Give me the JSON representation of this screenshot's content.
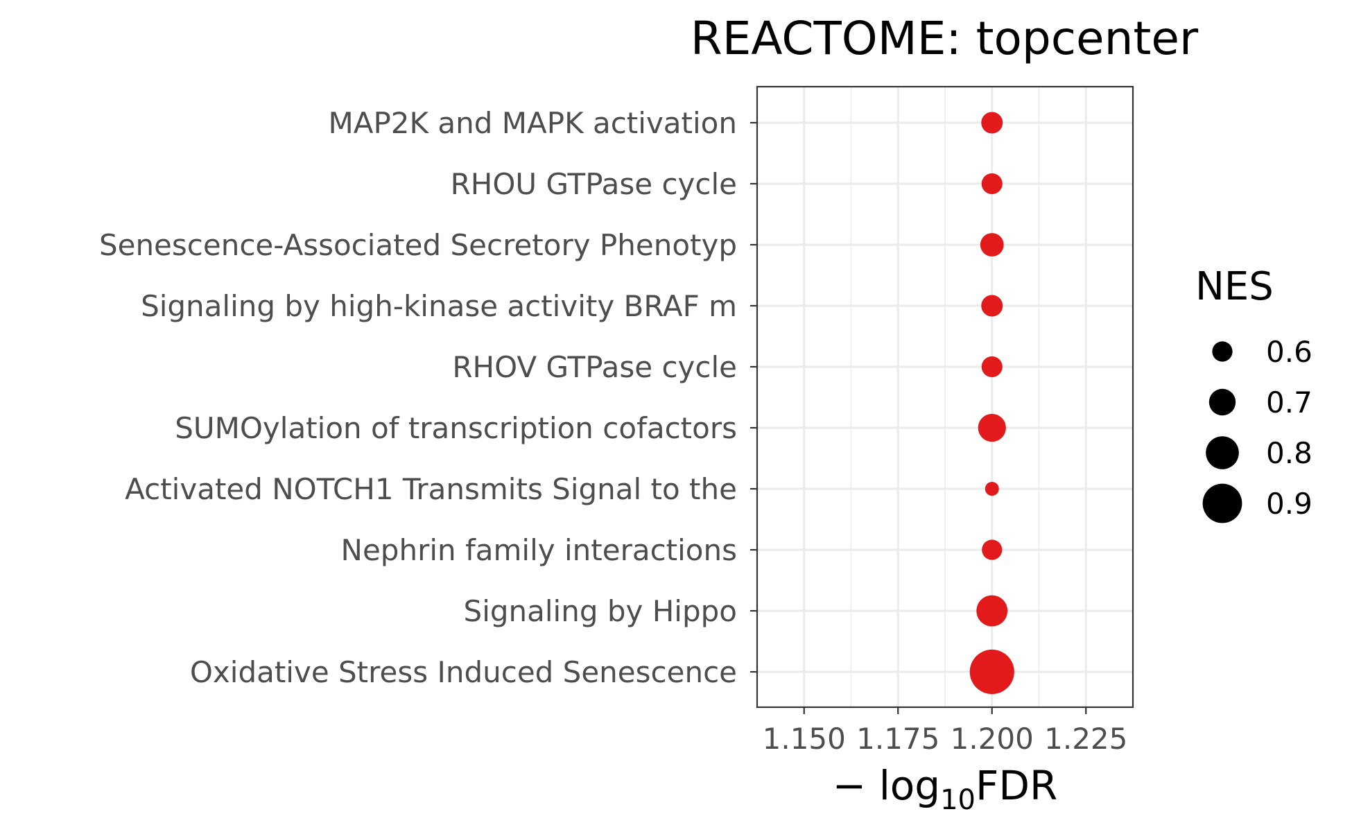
{
  "chart_data": {
    "type": "scatter",
    "title": "REACTOME: topcenter",
    "xlabel": {
      "prefix": "− log",
      "subscript": "10",
      "suffix": "FDR"
    },
    "ylabel": "",
    "xlim": [
      1.1375,
      1.2375
    ],
    "x_ticks": [
      1.15,
      1.175,
      1.2,
      1.225
    ],
    "x_tick_labels": [
      "1.150",
      "1.175",
      "1.200",
      "1.225"
    ],
    "grid": true,
    "point_color": "#e31a1c",
    "categories": [
      "MAP2K and MAPK activation",
      "RHOU GTPase cycle",
      "Senescence-Associated Secretory Phenotyp",
      "Signaling by high-kinase activity BRAF m",
      "RHOV GTPase cycle",
      "SUMOylation of transcription cofactors",
      "Activated NOTCH1 Transmits Signal to the",
      "Nephrin family interactions",
      "Signaling by Hippo",
      "Oxidative Stress Induced Senescence"
    ],
    "points": [
      {
        "category": "MAP2K and MAPK activation",
        "x": 1.2,
        "nes": 0.62
      },
      {
        "category": "RHOU GTPase cycle",
        "x": 1.2,
        "nes": 0.61
      },
      {
        "category": "Senescence-Associated Secretory Phenotyp",
        "x": 1.2,
        "nes": 0.65
      },
      {
        "category": "Signaling by high-kinase activity BRAF m",
        "x": 1.2,
        "nes": 0.62
      },
      {
        "category": "RHOV GTPase cycle",
        "x": 1.2,
        "nes": 0.61
      },
      {
        "category": "SUMOylation of transcription cofactors",
        "x": 1.2,
        "nes": 0.72
      },
      {
        "category": "Activated NOTCH1 Transmits Signal to the",
        "x": 1.2,
        "nes": 0.5
      },
      {
        "category": "Nephrin family interactions",
        "x": 1.2,
        "nes": 0.6
      },
      {
        "category": "Signaling by Hippo",
        "x": 1.2,
        "nes": 0.77
      },
      {
        "category": "Oxidative Stress Induced Senescence",
        "x": 1.2,
        "nes": 0.98
      }
    ],
    "legend": {
      "title": "NES",
      "placement": "right",
      "entries": [
        {
          "label": "0.6",
          "nes": 0.6
        },
        {
          "label": "0.7",
          "nes": 0.7
        },
        {
          "label": "0.8",
          "nes": 0.8
        },
        {
          "label": "0.9",
          "nes": 0.9
        }
      ]
    }
  }
}
